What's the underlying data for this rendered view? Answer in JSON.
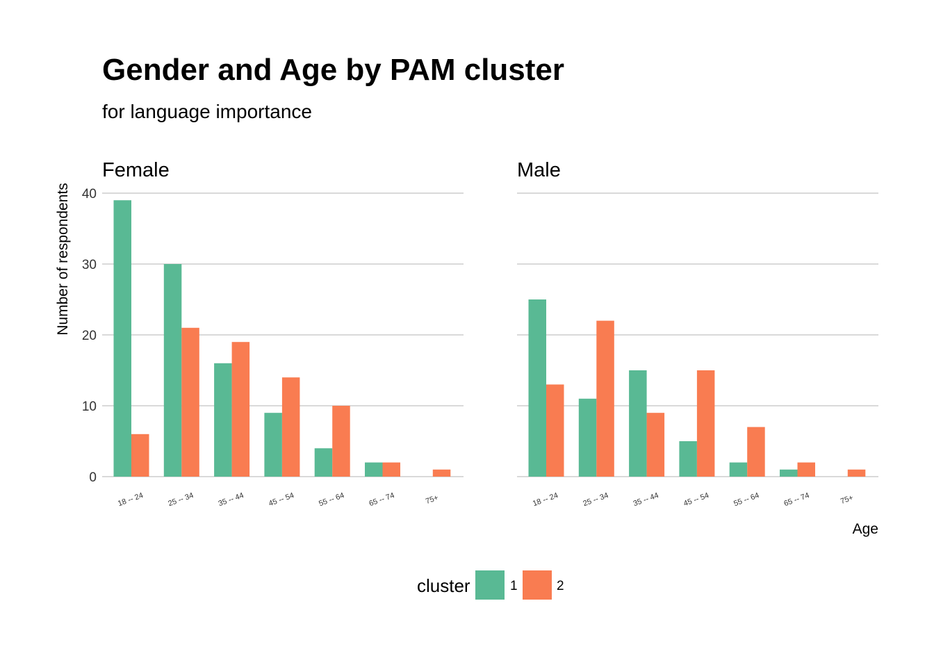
{
  "chart_data": {
    "type": "bar",
    "title": "Gender and Age by PAM cluster",
    "subtitle": "for language importance",
    "xlabel": "Age",
    "ylabel": "Number of respondents",
    "ylim": [
      0,
      40
    ],
    "y_ticks": [
      0,
      10,
      20,
      30,
      40
    ],
    "grid": "horizontal",
    "legend": {
      "title": "cluster",
      "position": "bottom",
      "entries": [
        {
          "label": "1",
          "color": "#59b994"
        },
        {
          "label": "2",
          "color": "#f97c51"
        }
      ]
    },
    "categories": [
      "18 -- 24",
      "25 -- 34",
      "35 -- 44",
      "45 -- 54",
      "55 -- 64",
      "65 -- 74",
      "75+"
    ],
    "facets": [
      {
        "name": "Female",
        "series": [
          {
            "name": "1",
            "values": [
              39,
              30,
              16,
              9,
              4,
              2,
              0
            ]
          },
          {
            "name": "2",
            "values": [
              6,
              21,
              19,
              14,
              10,
              2,
              1
            ]
          }
        ]
      },
      {
        "name": "Male",
        "series": [
          {
            "name": "1",
            "values": [
              25,
              11,
              15,
              5,
              2,
              1,
              0
            ]
          },
          {
            "name": "2",
            "values": [
              13,
              22,
              9,
              15,
              7,
              2,
              1
            ]
          }
        ]
      }
    ]
  }
}
